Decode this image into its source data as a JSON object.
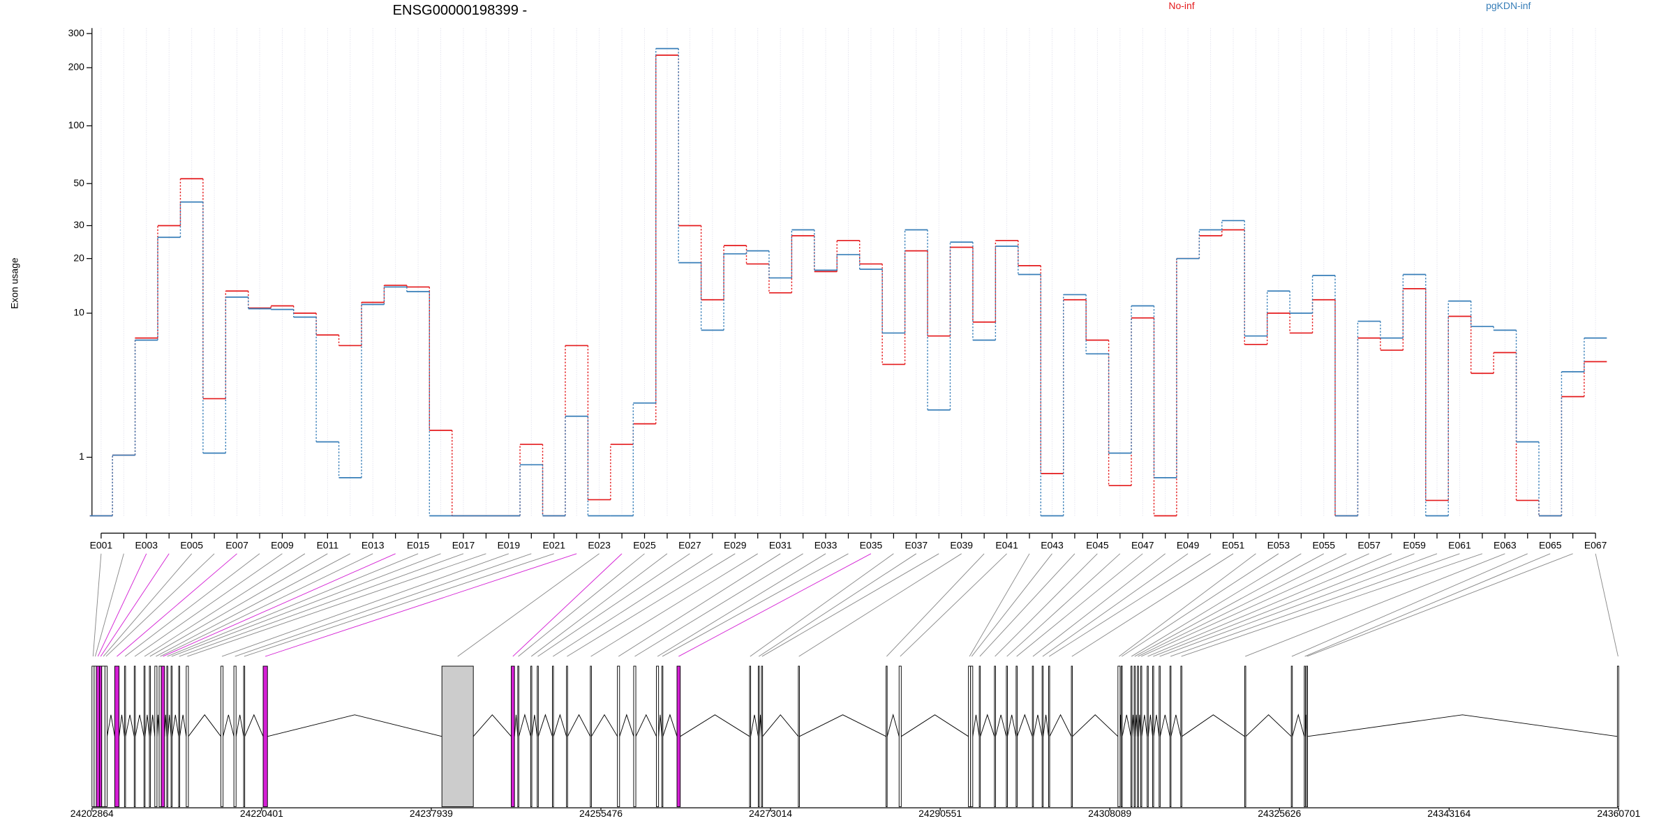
{
  "chart_data": {
    "type": "line",
    "title": "ENSG00000198399 -",
    "ylabel": "Exon usage",
    "yscale": "log1p",
    "ylim": [
      0,
      320
    ],
    "yticks": [
      1,
      10,
      20,
      30,
      50,
      100,
      200,
      300
    ],
    "grid": true,
    "legend": "top",
    "categories": [
      "E001",
      null,
      "E003",
      null,
      "E005",
      null,
      "E007",
      null,
      "E009",
      null,
      "E011",
      null,
      "E013",
      null,
      "E015",
      null,
      "E017",
      null,
      "E019",
      null,
      "E021",
      null,
      "E023",
      null,
      "E025",
      null,
      "E027",
      null,
      "E029",
      null,
      "E031",
      null,
      "E033",
      null,
      "E035",
      null,
      "E037",
      null,
      "E039",
      null,
      "E041",
      null,
      "E043",
      null,
      "E045",
      null,
      "E047",
      null,
      "E049",
      null,
      "E051",
      null,
      "E053",
      null,
      "E055",
      null,
      "E057",
      null,
      "E059",
      null,
      "E061",
      null,
      "E063",
      null,
      "E065",
      null,
      "E067"
    ],
    "series": [
      {
        "name": "No-inf",
        "color": "#e41a1c",
        "values": [
          0,
          1.05,
          7.2,
          30,
          53,
          3.0,
          13.3,
          10.7,
          11,
          10,
          7.5,
          6.5,
          11.5,
          14.3,
          14,
          1.75,
          0,
          0,
          0,
          1.33,
          0,
          6.5,
          0.21,
          1.33,
          1.97,
          232,
          30,
          11.9,
          23.5,
          18.7,
          13,
          26.5,
          17,
          25,
          18.7,
          5,
          22,
          7.4,
          23,
          8.9,
          25,
          18.3,
          0.65,
          11.9,
          7,
          0.43,
          9.4,
          0,
          20,
          26.5,
          28.5,
          6.6,
          10,
          7.7,
          11.9,
          0,
          7.2,
          6.1,
          13.7,
          0.2,
          9.6,
          4.4,
          5.9,
          0.2,
          0,
          3.1,
          5.2
        ]
      },
      {
        "name": "pgKDN-inf",
        "color": "#377eb8",
        "values": [
          0,
          1.05,
          7,
          26,
          40,
          1.1,
          12.3,
          10.6,
          10.5,
          9.5,
          1.4,
          0.57,
          11.2,
          14,
          13.2,
          0,
          0,
          0,
          0,
          0.83,
          0,
          2.25,
          0,
          0,
          2.8,
          251,
          19,
          8,
          21.2,
          22,
          15.7,
          28.5,
          17.3,
          21,
          17.5,
          7.7,
          28.5,
          2.5,
          24.5,
          7,
          23.3,
          16.4,
          0,
          12.7,
          5.8,
          1.1,
          11,
          0.57,
          20,
          28.5,
          31.9,
          7.4,
          13.3,
          10,
          16.2,
          0,
          9,
          7.2,
          16.4,
          0,
          11.7,
          8.4,
          8,
          1.4,
          0,
          4.5,
          7.2
        ]
      }
    ],
    "gene_model": {
      "xlim": [
        24202864,
        24360701
      ],
      "xticks": [
        24202864,
        24220401,
        24237939,
        24255476,
        24273014,
        24290551,
        24308089,
        24325626,
        24343164,
        24360701
      ],
      "exon_starts": [
        24202864,
        24203088,
        24203312,
        24203648,
        24203872,
        24204208,
        24205216,
        24206224,
        24207232,
        24208240,
        24208800,
        24209360,
        24209808,
        24210032,
        24210592,
        24211040,
        24211824,
        24212608,
        24216192,
        24217536,
        24218544,
        24220560,
        24239040,
        24246208,
        24246880,
        24248224,
        24248896,
        24250464,
        24251920,
        24254384,
        24257184,
        24258864,
        24261216,
        24261776,
        24263344,
        24270848,
        24271744,
        24272080,
        24275888,
        24284960,
        24286304,
        24293472,
        24293696,
        24294592,
        24296160,
        24297392,
        24298400,
        24300080,
        24301088,
        24301760,
        24304112,
        24308928,
        24309264,
        24310272,
        24310608,
        24310944,
        24311280,
        24311952,
        24312512,
        24313184,
        24314304,
        24315424,
        24322032,
        24326848,
        24328192,
        24328416,
        24360560
      ],
      "exon_ends": [
        24203088,
        24203312,
        24203648,
        24203872,
        24204208,
        24204432,
        24205664,
        24206336,
        24207344,
        24208352,
        24208912,
        24209584,
        24210032,
        24210368,
        24210704,
        24211152,
        24211936,
        24212832,
        24216416,
        24217760,
        24218656,
        24221008,
        24242288,
        24246544,
        24246992,
        24248336,
        24249008,
        24250576,
        24252032,
        24254496,
        24257408,
        24259088,
        24261440,
        24261888,
        24263680,
        24270960,
        24271856,
        24272192,
        24276000,
        24285072,
        24286528,
        24293696,
        24293920,
        24294704,
        24296272,
        24297504,
        24298512,
        24300192,
        24301200,
        24301872,
        24304224,
        24309152,
        24309376,
        24310384,
        24310720,
        24311056,
        24311392,
        24312064,
        24312624,
        24313296,
        24314416,
        24315536,
        24322144,
        24326960,
        24328304,
        24328528,
        24360701
      ],
      "exon_fills": [
        "#ffffff",
        "#ffffff",
        "#d41fd4",
        "#d41fd4",
        "#ffffff",
        "#ffffff",
        "#d41fd4",
        "#ffffff",
        "#ffffff",
        "#ffffff",
        "#ffffff",
        "#ffffff",
        "#ffffff",
        "#d41fd4",
        "#ffffff",
        "#ffffff",
        "#ffffff",
        "#ffffff",
        "#ffffff",
        "#ffffff",
        "#ffffff",
        "#d41fd4",
        "#cccccc",
        "#d41fd4",
        "#ffffff",
        "#ffffff",
        "#ffffff",
        "#ffffff",
        "#ffffff",
        "#ffffff",
        "#ffffff",
        "#ffffff",
        "#ffffff",
        "#ffffff",
        "#d41fd4",
        "#ffffff",
        "#ffffff",
        "#ffffff",
        "#ffffff",
        "#ffffff",
        "#ffffff",
        "#ffffff",
        "#ffffff",
        "#ffffff",
        "#ffffff",
        "#ffffff",
        "#ffffff",
        "#ffffff",
        "#ffffff",
        "#ffffff",
        "#ffffff",
        "#ffffff",
        "#ffffff",
        "#ffffff",
        "#ffffff",
        "#ffffff",
        "#ffffff",
        "#ffffff",
        "#ffffff",
        "#ffffff",
        "#ffffff",
        "#ffffff",
        "#ffffff",
        "#ffffff",
        "#ffffff",
        "#ffffff",
        "#ffffff"
      ]
    }
  }
}
